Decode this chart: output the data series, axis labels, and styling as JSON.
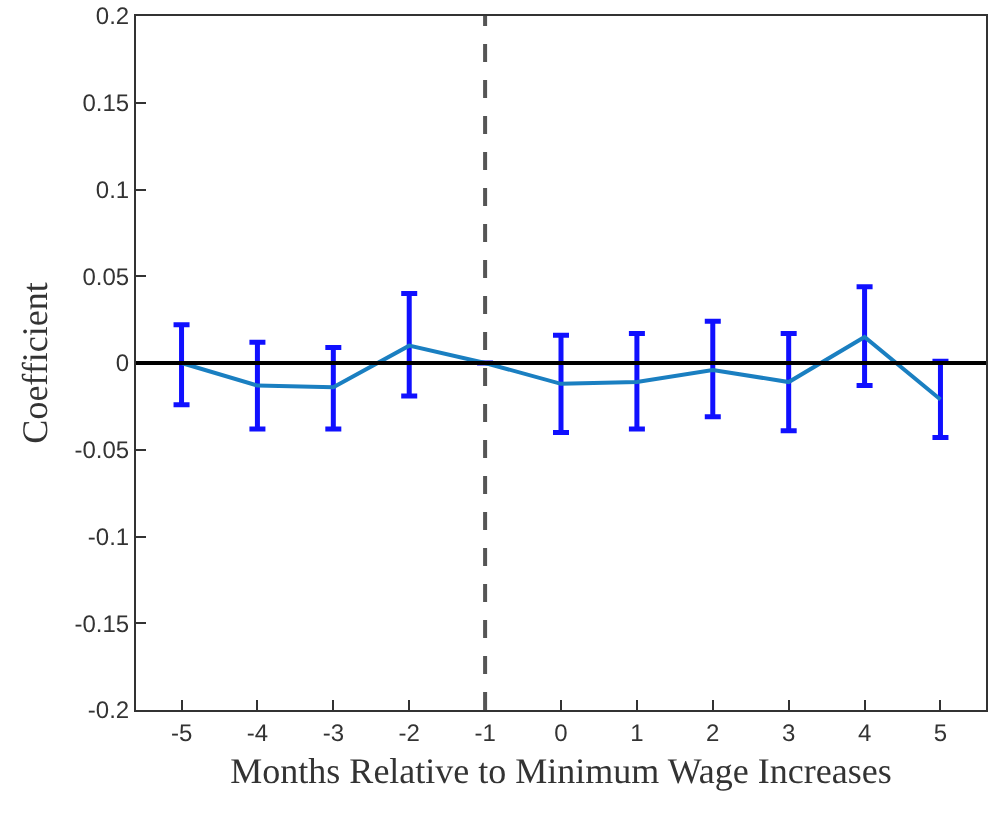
{
  "chart_data": {
    "type": "line",
    "xlabel": "Months Relative to Minimum Wage Increases",
    "ylabel": "Coefficient",
    "x": [
      -5,
      -4,
      -3,
      -2,
      -1,
      0,
      1,
      2,
      3,
      4,
      5
    ],
    "series": [
      {
        "color": "#1a7fc1",
        "values": [
          0,
          -0.013,
          -0.014,
          0.01,
          0,
          -0.012,
          -0.011,
          -0.004,
          -0.011,
          0.015,
          -0.021
        ],
        "errors": [
          [
            -0.024,
            0.022
          ],
          [
            -0.038,
            0.012
          ],
          [
            -0.038,
            0.009
          ],
          [
            -0.019,
            0.04
          ],
          null,
          [
            -0.04,
            0.016
          ],
          [
            -0.038,
            0.017
          ],
          [
            -0.031,
            0.024
          ],
          [
            -0.039,
            0.017
          ],
          [
            -0.013,
            0.044
          ],
          [
            -0.043,
            0.001
          ]
        ]
      }
    ],
    "xlim": [
      -5.6,
      5.6
    ],
    "xticks": [
      -5,
      -4,
      -3,
      -2,
      -1,
      0,
      1,
      2,
      3,
      4,
      5
    ],
    "ylim": [
      -0.2,
      0.2
    ],
    "yticks": [
      -0.2,
      -0.15,
      -0.1,
      -0.05,
      0,
      0.05,
      0.1,
      0.15,
      0.2
    ],
    "ref_lines": [
      {
        "axis": "y",
        "value": 0,
        "color": "#000000",
        "line_style": "solid"
      },
      {
        "axis": "x",
        "value": -1,
        "color": "#555555",
        "line_style": "dashed"
      }
    ],
    "marker": "none",
    "grid": false
  }
}
